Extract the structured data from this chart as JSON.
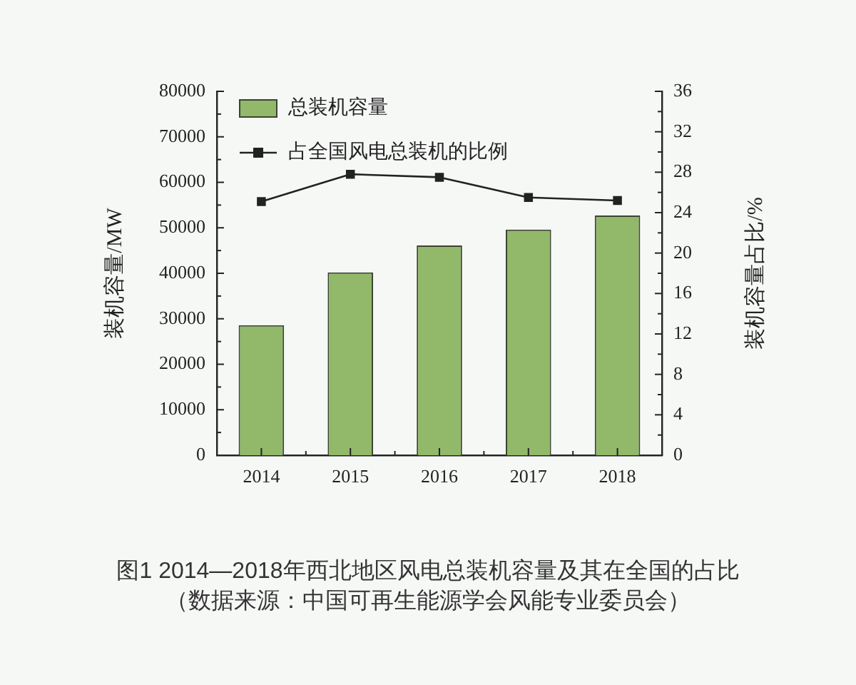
{
  "chart_data": {
    "type": "bar",
    "categories": [
      "2014",
      "2015",
      "2016",
      "2017",
      "2018"
    ],
    "series": [
      {
        "name": "总装机容量",
        "color": "#92b86a",
        "values": [
          28600,
          40200,
          46100,
          49600,
          52700
        ]
      },
      {
        "name": "占全国风电总装机的比例",
        "type": "line",
        "axis": "y2",
        "color": "#222222",
        "values": [
          25.1,
          27.8,
          27.5,
          25.5,
          25.2
        ]
      }
    ],
    "ylabel": "装机容量/MW",
    "y2label": "装机容量占比/%",
    "ylim": [
      0,
      80000
    ],
    "yticks": [
      0,
      {
        "value": 5000,
        "label": null
      },
      10000,
      {
        "value": 15000,
        "label": null
      },
      20000,
      {
        "value": 25000,
        "label": null
      },
      30000,
      {
        "value": 35000,
        "label": null
      },
      40000,
      {
        "value": 45000,
        "label": null
      },
      50000,
      {
        "value": 55000,
        "label": null
      },
      60000,
      {
        "value": 65000,
        "label": null
      },
      70000,
      {
        "value": 75000,
        "label": null
      },
      80000
    ],
    "y2lim": [
      0,
      36
    ],
    "y2ticks": [
      0,
      {
        "value": 2,
        "label": null
      },
      4,
      {
        "value": 6,
        "label": null
      },
      8,
      {
        "value": 10,
        "label": null
      },
      12,
      {
        "value": 14,
        "label": null
      },
      16,
      {
        "value": 18,
        "label": null
      },
      20,
      {
        "value": 22,
        "label": null
      },
      24,
      {
        "value": 26,
        "label": null
      },
      28,
      {
        "value": 30,
        "label": null
      },
      32,
      {
        "value": 34,
        "label": null
      },
      36
    ],
    "grid": false,
    "legend": "top left",
    "marker": "square",
    "line_style": "solid",
    "annotations": [
      "图1 2014—2018年西北地区风电总装机容量及其在全国的占比",
      "（数据来源：中国可再生能源学会风能专业委员会）"
    ]
  }
}
